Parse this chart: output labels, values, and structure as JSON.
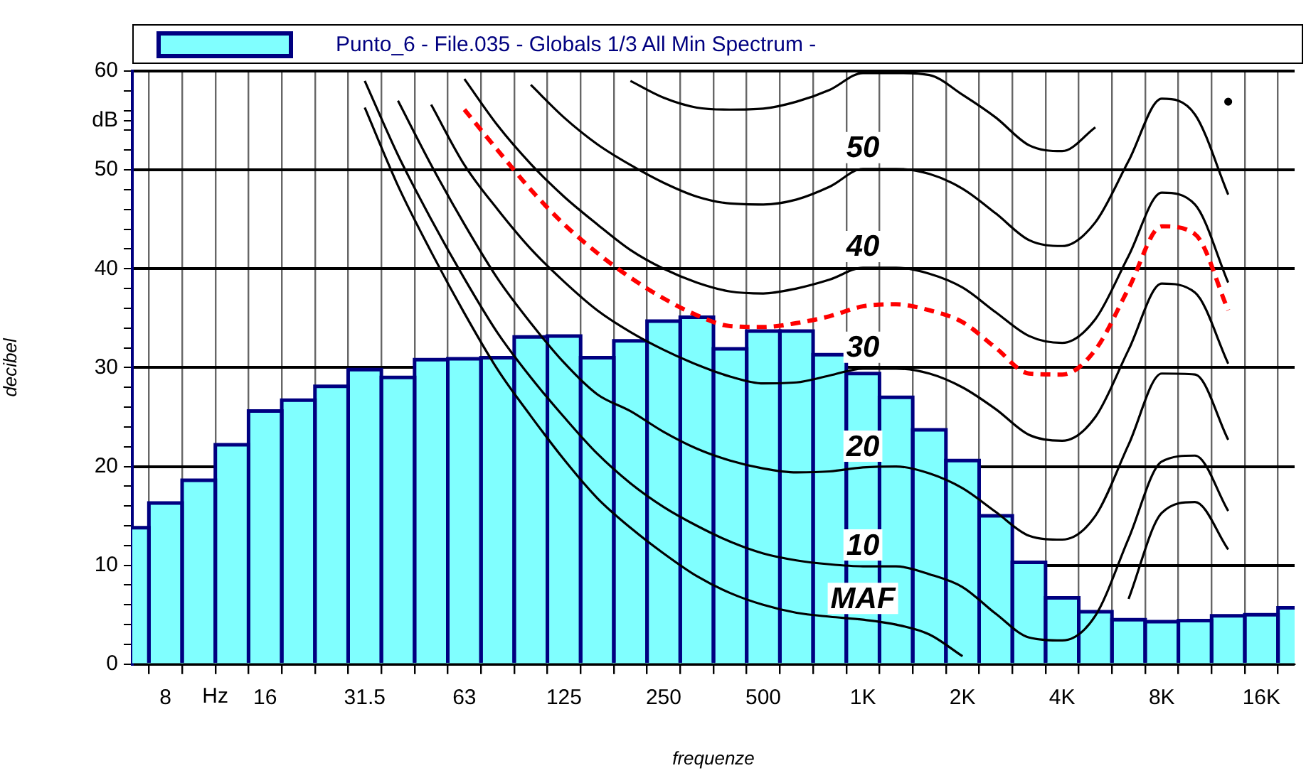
{
  "chart_data": {
    "type": "bar",
    "xlabel": "frequenze",
    "ylabel": "decibel",
    "categories": [
      null,
      "8",
      null,
      null,
      "16",
      null,
      null,
      "31.5",
      null,
      null,
      "63",
      null,
      null,
      "125",
      null,
      null,
      "250",
      null,
      null,
      "500",
      null,
      null,
      "1K",
      null,
      null,
      "2K",
      null,
      null,
      "4K",
      null,
      null,
      "8K",
      null,
      null,
      "16K",
      null
    ],
    "series": [
      {
        "name": "Punto_6 - File.035 - Globals 1/3 All Min Spectrum -",
        "color": "#80ffff",
        "values": [
          13.8,
          16.3,
          18.6,
          22.2,
          25.6,
          26.7,
          28.1,
          29.8,
          29.0,
          30.8,
          30.9,
          31.0,
          33.1,
          33.2,
          31.0,
          32.7,
          34.7,
          35.1,
          31.9,
          33.7,
          33.7,
          31.3,
          29.4,
          27.0,
          23.7,
          20.6,
          15.0,
          10.3,
          6.7,
          5.3,
          4.5,
          4.3,
          4.4,
          4.9,
          5.0,
          5.7
        ]
      },
      {
        "type": "line",
        "color": "#000000",
        "line_style": "solid",
        "values": [
          null,
          null,
          null,
          null,
          null,
          null,
          null,
          56.3,
          48.4,
          41.7,
          35.5,
          29.8,
          25.1,
          20.7,
          16.8,
          13.8,
          11.2,
          8.9,
          7.2,
          6.0,
          5.2,
          4.8,
          4.5,
          4.0,
          3.0,
          0.8,
          null,
          null,
          null,
          null,
          6.6,
          15.3,
          16.4,
          11.6,
          null,
          null
        ]
      },
      {
        "type": "line",
        "color": "#000000",
        "line_style": "solid",
        "values": [
          null,
          null,
          null,
          null,
          null,
          null,
          null,
          59.0,
          51.5,
          45.0,
          39.0,
          33.5,
          29.0,
          25.0,
          21.3,
          18.3,
          15.9,
          14.0,
          12.4,
          11.2,
          10.5,
          10.1,
          9.9,
          9.9,
          9.1,
          7.8,
          5.1,
          2.7,
          2.4,
          4.9,
          12.7,
          20.5,
          21.1,
          15.5,
          null,
          null
        ]
      },
      {
        "type": "line",
        "color": "#000000",
        "line_style": "solid",
        "values": [
          null,
          null,
          null,
          null,
          null,
          null,
          null,
          null,
          57.0,
          50.5,
          44.5,
          39.0,
          34.5,
          30.5,
          27.3,
          25.6,
          23.5,
          21.8,
          20.6,
          19.8,
          19.4,
          19.5,
          19.9,
          20.0,
          19.3,
          17.8,
          15.4,
          13.0,
          12.6,
          15.0,
          22.2,
          29.4,
          29.3,
          22.7,
          null,
          null
        ]
      },
      {
        "type": "line",
        "color": "#000000",
        "line_style": "solid",
        "values": [
          null,
          null,
          null,
          null,
          null,
          null,
          null,
          null,
          null,
          56.6,
          50.5,
          46.0,
          42.0,
          38.7,
          35.8,
          33.6,
          31.8,
          30.3,
          29.1,
          28.4,
          28.5,
          29.2,
          29.9,
          29.9,
          29.4,
          28.0,
          25.8,
          23.2,
          22.6,
          25.0,
          31.8,
          38.5,
          37.6,
          30.4,
          null,
          null
        ]
      },
      {
        "type": "line",
        "color": "#ff0000",
        "line_style": "dashed",
        "values": [
          null,
          null,
          null,
          null,
          null,
          null,
          null,
          null,
          null,
          null,
          56.1,
          52.0,
          48.0,
          44.5,
          41.6,
          39.1,
          37.0,
          35.3,
          34.2,
          34.1,
          34.5,
          35.2,
          36.2,
          36.4,
          35.8,
          34.6,
          32.0,
          29.4,
          29.3,
          31.8,
          38.0,
          44.3,
          43.5,
          35.8,
          null,
          null
        ]
      },
      {
        "type": "line",
        "color": "#000000",
        "line_style": "solid",
        "values": [
          null,
          null,
          null,
          null,
          null,
          null,
          null,
          null,
          null,
          null,
          59.2,
          54.5,
          50.6,
          47.3,
          44.5,
          41.9,
          40.0,
          38.6,
          37.7,
          37.5,
          38.0,
          38.9,
          40.1,
          40.1,
          39.5,
          38.1,
          35.6,
          33.2,
          32.5,
          34.9,
          41.3,
          47.7,
          46.5,
          38.6,
          null,
          null
        ]
      },
      {
        "type": "line",
        "color": "#000000",
        "line_style": "solid",
        "values": [
          null,
          null,
          null,
          null,
          null,
          null,
          null,
          null,
          null,
          null,
          null,
          null,
          58.6,
          55.3,
          52.6,
          50.5,
          48.7,
          47.3,
          46.6,
          46.5,
          47.0,
          48.3,
          50.1,
          50.1,
          49.6,
          48.1,
          45.6,
          42.9,
          42.3,
          44.7,
          50.9,
          57.2,
          55.6,
          47.5,
          null,
          null
        ]
      },
      {
        "type": "line",
        "color": "#000000",
        "line_style": "solid",
        "values": [
          null,
          null,
          null,
          null,
          null,
          null,
          null,
          null,
          null,
          null,
          null,
          null,
          null,
          null,
          null,
          59.0,
          57.3,
          56.3,
          56.1,
          56.2,
          56.9,
          58.1,
          59.8,
          59.8,
          59.6,
          57.6,
          55.3,
          52.5,
          51.9,
          54.3,
          null,
          null,
          null,
          56.9,
          null,
          null
        ]
      }
    ],
    "ylim": [
      0,
      60
    ],
    "yticks": [
      0,
      {
        "value": 2,
        "label": null
      },
      {
        "value": 4,
        "label": null
      },
      {
        "value": 6,
        "label": null
      },
      {
        "value": 8,
        "label": null
      },
      10,
      {
        "value": 12,
        "label": null
      },
      {
        "value": 14,
        "label": null
      },
      {
        "value": 16,
        "label": null
      },
      {
        "value": 18,
        "label": null
      },
      20,
      {
        "value": 22,
        "label": null
      },
      {
        "value": 24,
        "label": null
      },
      {
        "value": 26,
        "label": null
      },
      {
        "value": 28,
        "label": null
      },
      30,
      {
        "value": 32,
        "label": null
      },
      {
        "value": 34,
        "label": null
      },
      {
        "value": 36,
        "label": null
      },
      {
        "value": 38,
        "label": null
      },
      40,
      {
        "value": 42,
        "label": null
      },
      {
        "value": 44,
        "label": null
      },
      {
        "value": 46,
        "label": null
      },
      {
        "value": 48,
        "label": null
      },
      50,
      {
        "value": 52,
        "label": null
      },
      {
        "value": 54,
        "label": null
      },
      {
        "value": 55,
        "label": "dB"
      },
      {
        "value": 56,
        "label": null
      },
      {
        "value": 58,
        "label": null
      },
      60
    ],
    "grid": true,
    "legend": "top",
    "annotations": [
      "Hz",
      {
        "text": "50",
        "x": "1K",
        "y": 50.1
      },
      {
        "text": "40",
        "x": "1K",
        "y": 40.1
      },
      {
        "text": "30",
        "x": "1K",
        "y": 29.9
      },
      {
        "text": "20",
        "x": "1K",
        "y": 19.9
      },
      {
        "text": "10",
        "x": "1K",
        "y": 9.9
      },
      {
        "text": "MAF",
        "x": "1K",
        "y": 4.5
      }
    ]
  }
}
